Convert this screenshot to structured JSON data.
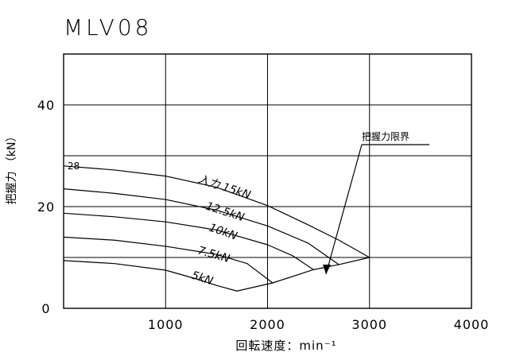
{
  "chart_data": {
    "type": "line",
    "title": "MLV08",
    "xlabel": "回転速度：min⁻¹",
    "ylabel": "把握力 （kN）",
    "xlim": [
      0,
      4000
    ],
    "ylim": [
      0,
      50
    ],
    "xticks": [
      "1000",
      "2000",
      "3000",
      "4000"
    ],
    "yticks": [
      "0",
      "20",
      "40"
    ],
    "grid": true,
    "limit_annotation": {
      "label": "把握力限界"
    },
    "start_marker": {
      "label": "28",
      "value": 28
    },
    "series": [
      {
        "name": "入力 15kN",
        "values": [
          [
            0,
            28.0
          ],
          [
            500,
            27.2
          ],
          [
            1000,
            26.0
          ],
          [
            1500,
            23.8
          ],
          [
            2000,
            20.2
          ],
          [
            2400,
            16.4
          ],
          [
            2700,
            13.4
          ],
          [
            3000,
            10.0
          ]
        ]
      },
      {
        "name": "12.5kN",
        "values": [
          [
            0,
            23.5
          ],
          [
            500,
            22.6
          ],
          [
            1000,
            21.4
          ],
          [
            1500,
            19.3
          ],
          [
            2000,
            16.2
          ],
          [
            2400,
            12.8
          ],
          [
            2700,
            8.6
          ]
        ]
      },
      {
        "name": "10kN",
        "values": [
          [
            0,
            18.7
          ],
          [
            500,
            18.0
          ],
          [
            1000,
            17.0
          ],
          [
            1500,
            15.4
          ],
          [
            2000,
            12.5
          ],
          [
            2250,
            10.3
          ],
          [
            2450,
            7.6
          ]
        ]
      },
      {
        "name": "7.5kN",
        "values": [
          [
            0,
            14.0
          ],
          [
            500,
            13.4
          ],
          [
            1000,
            12.2
          ],
          [
            1500,
            10.6
          ],
          [
            1800,
            8.8
          ],
          [
            2050,
            5.0
          ]
        ]
      },
      {
        "name": "5kN",
        "values": [
          [
            0,
            9.4
          ],
          [
            500,
            8.8
          ],
          [
            1000,
            7.5
          ],
          [
            1300,
            5.8
          ],
          [
            1500,
            4.5
          ],
          [
            1700,
            3.4
          ]
        ]
      },
      {
        "name": "把握力限界",
        "values": [
          [
            1700,
            3.4
          ],
          [
            2050,
            5.0
          ],
          [
            2450,
            7.6
          ],
          [
            2700,
            8.6
          ],
          [
            3000,
            10.0
          ]
        ]
      }
    ]
  }
}
